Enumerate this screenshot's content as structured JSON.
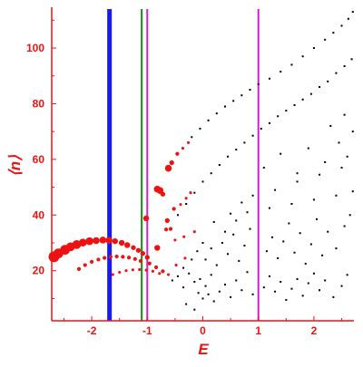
{
  "chart_data": {
    "type": "scatter",
    "xlabel": "E",
    "ylabel": "⟨n⟩",
    "xlim": [
      -2.72,
      2.72
    ],
    "ylim": [
      2,
      114
    ],
    "x_ticks": [
      -2,
      -1,
      0,
      1,
      2
    ],
    "x_tick_labels": [
      "-2",
      "-1",
      "0",
      "1",
      "2"
    ],
    "y_ticks": [
      20,
      40,
      60,
      80,
      100
    ],
    "y_tick_labels": [
      "20",
      "40",
      "60",
      "80",
      "100"
    ],
    "grid": false,
    "colors": {
      "axis": "#ee1111",
      "tick_labels": "#ee1111",
      "eigenstates": "#000000",
      "highlighted": "#ee1111"
    },
    "vertical_lines": [
      {
        "x": -1.68,
        "color": "#1a1aee",
        "style": "thick"
      },
      {
        "x": -1.1,
        "color": "#118811",
        "style": "thin"
      },
      {
        "x": -1.0,
        "color": "#cc22cc",
        "style": "thin"
      },
      {
        "x": 1.0,
        "color": "#cc22cc",
        "style": "thin"
      }
    ],
    "series": [
      {
        "marker": "red-dot-weighted",
        "points": [
          {
            "x": -2.68,
            "y": 25.0,
            "w": 9
          },
          {
            "x": -2.6,
            "y": 26.2,
            "w": 8
          },
          {
            "x": -2.48,
            "y": 27.5,
            "w": 8
          },
          {
            "x": -2.38,
            "y": 28.6,
            "w": 7
          },
          {
            "x": -2.27,
            "y": 29.4,
            "w": 7
          },
          {
            "x": -2.16,
            "y": 30.1,
            "w": 6
          },
          {
            "x": -2.04,
            "y": 30.6,
            "w": 6
          },
          {
            "x": -1.92,
            "y": 30.8,
            "w": 5
          },
          {
            "x": -1.8,
            "y": 31.0,
            "w": 5
          },
          {
            "x": -1.69,
            "y": 30.9,
            "w": 5
          },
          {
            "x": -1.58,
            "y": 30.6,
            "w": 4
          },
          {
            "x": -1.46,
            "y": 30.0,
            "w": 4
          },
          {
            "x": -1.36,
            "y": 29.2,
            "w": 4
          },
          {
            "x": -1.25,
            "y": 28.3,
            "w": 3
          },
          {
            "x": -1.16,
            "y": 27.3,
            "w": 3
          },
          {
            "x": -1.08,
            "y": 26.2,
            "w": 3
          },
          {
            "x": -1.0,
            "y": 24.8,
            "w": 3
          },
          {
            "x": -2.23,
            "y": 20.6,
            "w": 2
          },
          {
            "x": -2.12,
            "y": 22.0,
            "w": 2
          },
          {
            "x": -2.0,
            "y": 23.2,
            "w": 2
          },
          {
            "x": -1.88,
            "y": 24.0,
            "w": 2
          },
          {
            "x": -1.77,
            "y": 24.6,
            "w": 2
          },
          {
            "x": -1.66,
            "y": 25.0,
            "w": 2
          },
          {
            "x": -1.55,
            "y": 25.1,
            "w": 2
          },
          {
            "x": -1.44,
            "y": 25.0,
            "w": 2
          },
          {
            "x": -1.33,
            "y": 24.7,
            "w": 2
          },
          {
            "x": -1.22,
            "y": 24.2,
            "w": 2
          },
          {
            "x": -1.12,
            "y": 23.5,
            "w": 2
          },
          {
            "x": -0.96,
            "y": 22.6,
            "w": 2
          },
          {
            "x": -0.84,
            "y": 21.2,
            "w": 2
          },
          {
            "x": -0.72,
            "y": 19.8,
            "w": 2
          },
          {
            "x": -1.62,
            "y": 18.6,
            "w": 1
          },
          {
            "x": -1.5,
            "y": 19.4,
            "w": 1
          },
          {
            "x": -1.38,
            "y": 20.0,
            "w": 1
          },
          {
            "x": -1.26,
            "y": 20.3,
            "w": 1
          },
          {
            "x": -1.14,
            "y": 20.4,
            "w": 1
          },
          {
            "x": -1.02,
            "y": 20.2,
            "w": 1
          },
          {
            "x": -0.9,
            "y": 19.8,
            "w": 1
          },
          {
            "x": -0.78,
            "y": 19.0,
            "w": 1
          },
          {
            "x": -1.02,
            "y": 38.8,
            "w": 4
          },
          {
            "x": -0.82,
            "y": 28.2,
            "w": 4
          },
          {
            "x": -0.82,
            "y": 49.3,
            "w": 5
          },
          {
            "x": -0.77,
            "y": 48.8,
            "w": 5
          },
          {
            "x": -0.72,
            "y": 47.5,
            "w": 3
          },
          {
            "x": -0.66,
            "y": 34.8,
            "w": 2
          },
          {
            "x": -0.64,
            "y": 38.0,
            "w": 3
          },
          {
            "x": -0.62,
            "y": 56.8,
            "w": 5
          },
          {
            "x": -0.58,
            "y": 35.0,
            "w": 2
          },
          {
            "x": -0.56,
            "y": 58.8,
            "w": 3
          },
          {
            "x": -0.52,
            "y": 42.2,
            "w": 2
          },
          {
            "x": -0.5,
            "y": 31.0,
            "w": 1
          },
          {
            "x": -0.46,
            "y": 62.0,
            "w": 2
          },
          {
            "x": -0.4,
            "y": 43.8,
            "w": 1
          },
          {
            "x": -0.36,
            "y": 64.0,
            "w": 1
          },
          {
            "x": -0.34,
            "y": 32.2,
            "w": 1
          },
          {
            "x": -0.3,
            "y": 46.0,
            "w": 1
          },
          {
            "x": -0.26,
            "y": 66.0,
            "w": 1
          },
          {
            "x": -0.22,
            "y": 48.0,
            "w": 1
          },
          {
            "x": -0.15,
            "y": 34.0,
            "w": 1
          },
          {
            "x": -0.48,
            "y": 22.0,
            "w": 1
          },
          {
            "x": -0.32,
            "y": 24.5,
            "w": 1
          },
          {
            "x": -0.62,
            "y": 18.6,
            "w": 1
          }
        ]
      },
      {
        "marker": "black-dot",
        "points": [
          {
            "x": -0.55,
            "y": 16.5
          },
          {
            "x": -0.45,
            "y": 18.0
          },
          {
            "x": -0.35,
            "y": 14.0
          },
          {
            "x": -0.25,
            "y": 19.0
          },
          {
            "x": -0.15,
            "y": 16.0
          },
          {
            "x": -0.05,
            "y": 17.0
          },
          {
            "x": 0.05,
            "y": 14.5
          },
          {
            "x": 0.15,
            "y": 18.5
          },
          {
            "x": -0.08,
            "y": 12.0
          },
          {
            "x": 0.0,
            "y": 10.0
          },
          {
            "x": 0.1,
            "y": 11.5
          },
          {
            "x": 0.2,
            "y": 9.0
          },
          {
            "x": -0.3,
            "y": 8.0
          },
          {
            "x": -0.15,
            "y": 6.0
          },
          {
            "x": 0.3,
            "y": 12.5
          },
          {
            "x": 0.4,
            "y": 15.0
          },
          {
            "x": 0.5,
            "y": 10.5
          },
          {
            "x": 0.6,
            "y": 16.5
          },
          {
            "x": 0.7,
            "y": 13.0
          },
          {
            "x": 0.8,
            "y": 19.5
          },
          {
            "x": 0.9,
            "y": 11.5
          },
          {
            "x": 1.1,
            "y": 14.0
          },
          {
            "x": 1.2,
            "y": 18.0
          },
          {
            "x": 1.3,
            "y": 12.5
          },
          {
            "x": 1.4,
            "y": 16.0
          },
          {
            "x": 1.5,
            "y": 9.5
          },
          {
            "x": 1.6,
            "y": 13.5
          },
          {
            "x": 1.7,
            "y": 17.0
          },
          {
            "x": 1.8,
            "y": 11.0
          },
          {
            "x": 1.9,
            "y": 15.5
          },
          {
            "x": 2.0,
            "y": 19.0
          },
          {
            "x": 2.1,
            "y": 13.0
          },
          {
            "x": 2.2,
            "y": 16.5
          },
          {
            "x": 2.35,
            "y": 10.5
          },
          {
            "x": 2.5,
            "y": 14.5
          },
          {
            "x": 2.6,
            "y": 18.5
          },
          {
            "x": 0.05,
            "y": 24.0
          },
          {
            "x": 0.15,
            "y": 28.0
          },
          {
            "x": 0.25,
            "y": 22.0
          },
          {
            "x": 0.35,
            "y": 30.0
          },
          {
            "x": 0.45,
            "y": 26.0
          },
          {
            "x": 0.55,
            "y": 33.0
          },
          {
            "x": 0.65,
            "y": 23.5
          },
          {
            "x": 0.75,
            "y": 29.0
          },
          {
            "x": 0.85,
            "y": 35.0
          },
          {
            "x": 1.15,
            "y": 27.0
          },
          {
            "x": 1.25,
            "y": 32.0
          },
          {
            "x": 1.35,
            "y": 24.5
          },
          {
            "x": 1.45,
            "y": 30.5
          },
          {
            "x": 1.55,
            "y": 37.0
          },
          {
            "x": 1.65,
            "y": 26.5
          },
          {
            "x": 1.75,
            "y": 33.5
          },
          {
            "x": 1.85,
            "y": 22.5
          },
          {
            "x": 1.95,
            "y": 29.5
          },
          {
            "x": 2.05,
            "y": 38.5
          },
          {
            "x": 2.15,
            "y": 25.5
          },
          {
            "x": 2.25,
            "y": 34.0
          },
          {
            "x": 2.4,
            "y": 28.0
          },
          {
            "x": 2.55,
            "y": 36.0
          },
          {
            "x": 2.65,
            "y": 40.0
          },
          {
            "x": -0.35,
            "y": 21.0
          },
          {
            "x": -0.2,
            "y": 24.0
          },
          {
            "x": -0.1,
            "y": 27.0
          },
          {
            "x": 0.0,
            "y": 30.0
          },
          {
            "x": 0.4,
            "y": 34.0
          },
          {
            "x": 0.6,
            "y": 38.0
          },
          {
            "x": 0.8,
            "y": 41.0
          },
          {
            "x": 1.2,
            "y": 42.5
          },
          {
            "x": 1.6,
            "y": 44.0
          },
          {
            "x": 2.0,
            "y": 45.5
          },
          {
            "x": 2.4,
            "y": 47.0
          },
          {
            "x": 2.7,
            "y": 48.5
          },
          {
            "x": 0.2,
            "y": 37.5
          },
          {
            "x": 0.5,
            "y": 40.5
          },
          {
            "x": 0.7,
            "y": 44.5
          },
          {
            "x": 0.9,
            "y": 47.0
          },
          {
            "x": 1.3,
            "y": 49.0
          },
          {
            "x": 1.7,
            "y": 52.0
          },
          {
            "x": 2.1,
            "y": 54.5
          },
          {
            "x": 2.5,
            "y": 57.0
          },
          {
            "x": -0.45,
            "y": 40.0
          },
          {
            "x": -0.3,
            "y": 44.0
          },
          {
            "x": -0.15,
            "y": 48.0
          },
          {
            "x": 0.0,
            "y": 52.0
          },
          {
            "x": 0.15,
            "y": 55.0
          },
          {
            "x": 0.3,
            "y": 58.0
          },
          {
            "x": 0.45,
            "y": 61.0
          },
          {
            "x": 0.6,
            "y": 63.5
          },
          {
            "x": 0.75,
            "y": 66.0
          },
          {
            "x": 0.9,
            "y": 68.5
          },
          {
            "x": 1.05,
            "y": 71.0
          },
          {
            "x": 1.2,
            "y": 73.0
          },
          {
            "x": 1.35,
            "y": 75.5
          },
          {
            "x": 1.5,
            "y": 77.5
          },
          {
            "x": 1.65,
            "y": 79.5
          },
          {
            "x": 1.8,
            "y": 81.5
          },
          {
            "x": 1.95,
            "y": 83.5
          },
          {
            "x": 2.1,
            "y": 86.0
          },
          {
            "x": 2.25,
            "y": 88.0
          },
          {
            "x": 2.4,
            "y": 91.0
          },
          {
            "x": 2.55,
            "y": 93.5
          },
          {
            "x": 2.68,
            "y": 96.0
          },
          {
            "x": -0.2,
            "y": 68.0
          },
          {
            "x": -0.05,
            "y": 71.0
          },
          {
            "x": 0.1,
            "y": 74.0
          },
          {
            "x": 0.25,
            "y": 76.5
          },
          {
            "x": 0.4,
            "y": 79.0
          },
          {
            "x": 0.55,
            "y": 81.0
          },
          {
            "x": 0.7,
            "y": 83.0
          },
          {
            "x": 0.85,
            "y": 85.0
          },
          {
            "x": 1.0,
            "y": 87.0
          },
          {
            "x": 1.2,
            "y": 89.0
          },
          {
            "x": 1.4,
            "y": 91.5
          },
          {
            "x": 1.6,
            "y": 94.0
          },
          {
            "x": 1.8,
            "y": 97.0
          },
          {
            "x": 2.0,
            "y": 100.0
          },
          {
            "x": 2.2,
            "y": 103.0
          },
          {
            "x": 2.35,
            "y": 105.5
          },
          {
            "x": 2.5,
            "y": 108.0
          },
          {
            "x": 2.62,
            "y": 110.5
          },
          {
            "x": 2.7,
            "y": 113.0
          },
          {
            "x": 1.1,
            "y": 57.0
          },
          {
            "x": 1.4,
            "y": 62.0
          },
          {
            "x": 1.7,
            "y": 55.0
          },
          {
            "x": 1.9,
            "y": 64.0
          },
          {
            "x": 2.2,
            "y": 59.0
          },
          {
            "x": 2.45,
            "y": 66.0
          },
          {
            "x": 2.6,
            "y": 61.0
          },
          {
            "x": 2.7,
            "y": 70.0
          },
          {
            "x": 2.3,
            "y": 72.0
          },
          {
            "x": 2.55,
            "y": 76.0
          }
        ]
      }
    ]
  }
}
